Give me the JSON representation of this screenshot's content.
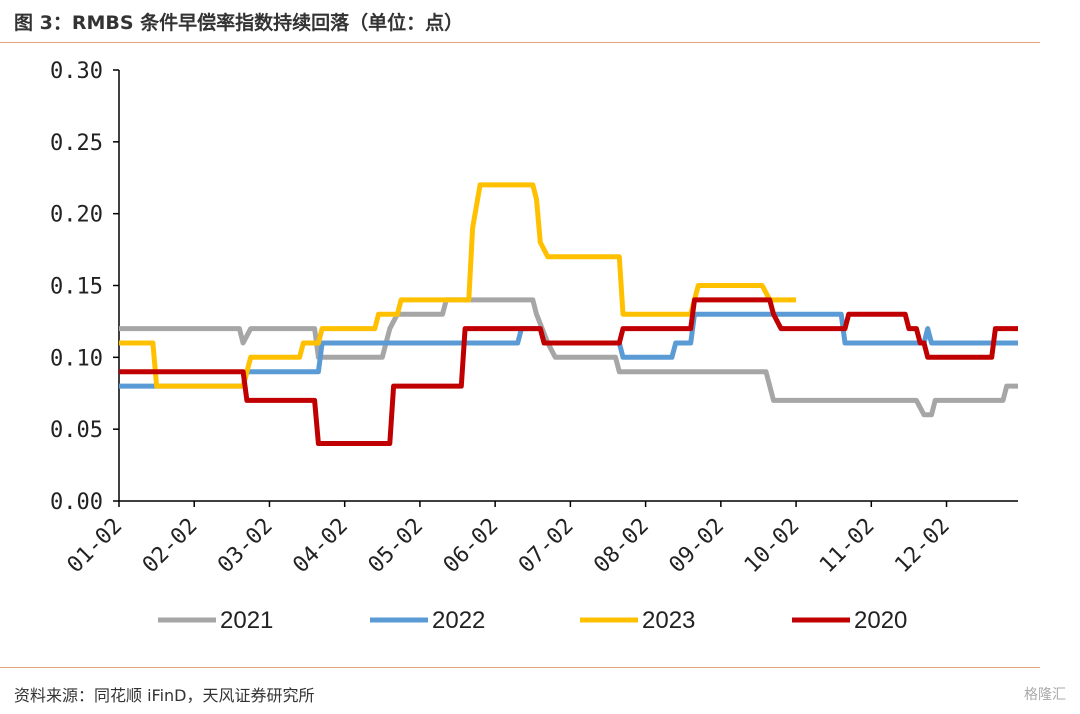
{
  "header": {
    "title": "图 3：RMBS 条件早偿率指数持续回落（单位：点）"
  },
  "footer": {
    "source": "资料来源：同花顺 iFinD，天风证券研究所",
    "watermark": "格隆汇"
  },
  "chart_data": {
    "type": "line",
    "title": "图 3：RMBS 条件早偿率指数持续回落（单位：点）",
    "ylim": [
      0,
      0.3
    ],
    "yticks": [
      "0.00",
      "0.05",
      "0.10",
      "0.15",
      "0.20",
      "0.25",
      "0.30"
    ],
    "xlim": [
      1,
      12.95
    ],
    "xticks": [
      "01-02",
      "02-02",
      "03-02",
      "04-02",
      "05-02",
      "06-02",
      "07-02",
      "08-02",
      "09-02",
      "10-02",
      "11-02",
      "12-02"
    ],
    "grid": false,
    "legend": "bottom",
    "series": [
      {
        "name": "2021",
        "color": "#a6a6a6",
        "points": [
          [
            1,
            0.12
          ],
          [
            2.6,
            0.12
          ],
          [
            2.65,
            0.11
          ],
          [
            2.75,
            0.12
          ],
          [
            3.6,
            0.12
          ],
          [
            3.65,
            0.1
          ],
          [
            4.5,
            0.1
          ],
          [
            4.6,
            0.12
          ],
          [
            4.7,
            0.13
          ],
          [
            5.3,
            0.13
          ],
          [
            5.35,
            0.14
          ],
          [
            6.5,
            0.14
          ],
          [
            6.55,
            0.13
          ],
          [
            6.7,
            0.11
          ],
          [
            6.8,
            0.1
          ],
          [
            7.6,
            0.1
          ],
          [
            7.65,
            0.09
          ],
          [
            9.6,
            0.09
          ],
          [
            9.7,
            0.07
          ],
          [
            11.6,
            0.07
          ],
          [
            11.7,
            0.06
          ],
          [
            11.8,
            0.06
          ],
          [
            11.85,
            0.07
          ],
          [
            12.75,
            0.07
          ],
          [
            12.8,
            0.08
          ],
          [
            12.95,
            0.08
          ]
        ]
      },
      {
        "name": "2022",
        "color": "#5b9bd5",
        "points": [
          [
            1,
            0.08
          ],
          [
            2.65,
            0.08
          ],
          [
            2.7,
            0.09
          ],
          [
            3.65,
            0.09
          ],
          [
            3.7,
            0.11
          ],
          [
            6.3,
            0.11
          ],
          [
            6.35,
            0.12
          ],
          [
            6.6,
            0.12
          ],
          [
            6.65,
            0.11
          ],
          [
            7.65,
            0.11
          ],
          [
            7.7,
            0.1
          ],
          [
            8.35,
            0.1
          ],
          [
            8.4,
            0.11
          ],
          [
            8.6,
            0.11
          ],
          [
            8.65,
            0.13
          ],
          [
            10.6,
            0.13
          ],
          [
            10.65,
            0.11
          ],
          [
            11.7,
            0.11
          ],
          [
            11.75,
            0.12
          ],
          [
            11.8,
            0.11
          ],
          [
            12.95,
            0.11
          ]
        ]
      },
      {
        "name": "2023",
        "color": "#ffc000",
        "points": [
          [
            1,
            0.11
          ],
          [
            1.45,
            0.11
          ],
          [
            1.5,
            0.08
          ],
          [
            2.65,
            0.08
          ],
          [
            2.75,
            0.1
          ],
          [
            3.4,
            0.1
          ],
          [
            3.45,
            0.11
          ],
          [
            3.65,
            0.11
          ],
          [
            3.7,
            0.12
          ],
          [
            4.4,
            0.12
          ],
          [
            4.45,
            0.13
          ],
          [
            4.7,
            0.13
          ],
          [
            4.75,
            0.14
          ],
          [
            5.65,
            0.14
          ],
          [
            5.7,
            0.19
          ],
          [
            5.8,
            0.22
          ],
          [
            6.5,
            0.22
          ],
          [
            6.55,
            0.21
          ],
          [
            6.6,
            0.18
          ],
          [
            6.7,
            0.17
          ],
          [
            7.65,
            0.17
          ],
          [
            7.7,
            0.13
          ],
          [
            8.6,
            0.13
          ],
          [
            8.7,
            0.15
          ],
          [
            9.55,
            0.15
          ],
          [
            9.65,
            0.14
          ],
          [
            10.0,
            0.14
          ]
        ]
      },
      {
        "name": "2020",
        "color": "#c00000",
        "points": [
          [
            1,
            0.09
          ],
          [
            2.65,
            0.09
          ],
          [
            2.7,
            0.07
          ],
          [
            3.6,
            0.07
          ],
          [
            3.65,
            0.04
          ],
          [
            4.6,
            0.04
          ],
          [
            4.65,
            0.08
          ],
          [
            5.55,
            0.08
          ],
          [
            5.6,
            0.12
          ],
          [
            6.6,
            0.12
          ],
          [
            6.65,
            0.11
          ],
          [
            7.65,
            0.11
          ],
          [
            7.7,
            0.12
          ],
          [
            8.6,
            0.12
          ],
          [
            8.65,
            0.14
          ],
          [
            9.65,
            0.14
          ],
          [
            9.7,
            0.13
          ],
          [
            9.8,
            0.12
          ],
          [
            10.65,
            0.12
          ],
          [
            10.7,
            0.13
          ],
          [
            11.45,
            0.13
          ],
          [
            11.5,
            0.12
          ],
          [
            11.6,
            0.12
          ],
          [
            11.65,
            0.11
          ],
          [
            11.7,
            0.11
          ],
          [
            11.75,
            0.1
          ],
          [
            12.6,
            0.1
          ],
          [
            12.65,
            0.12
          ],
          [
            12.95,
            0.12
          ]
        ]
      }
    ]
  }
}
